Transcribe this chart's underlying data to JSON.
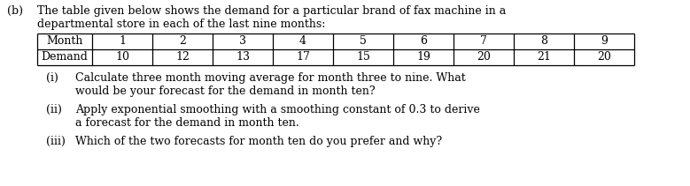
{
  "label_b": "(b)",
  "intro_text_line1": "The table given below shows the demand for a particular brand of fax machine in a",
  "intro_text_line2": "departmental store in each of the last nine months:",
  "table_headers": [
    "Month",
    "1",
    "2",
    "3",
    "4",
    "5",
    "6",
    "7",
    "8",
    "9"
  ],
  "table_row_label": "Demand",
  "table_values": [
    "10",
    "12",
    "13",
    "17",
    "15",
    "19",
    "20",
    "21",
    "20"
  ],
  "item_i_label": "(i)",
  "item_i_line1": "Calculate three month moving average for month three to nine. What",
  "item_i_line2": "would be your forecast for the demand in month ten?",
  "item_ii_label": "(ii)",
  "item_ii_line1": "Apply exponential smoothing with a smoothing constant of 0.3 to derive",
  "item_ii_line2": "a forecast for the demand in month ten.",
  "item_iii_label": "(iii)",
  "item_iii_line1": "Which of the two forecasts for month ten do you prefer and why?",
  "bg_color": "#ffffff",
  "text_color": "#000000",
  "table_border_color": "#000000",
  "font_size_main": 9.0
}
